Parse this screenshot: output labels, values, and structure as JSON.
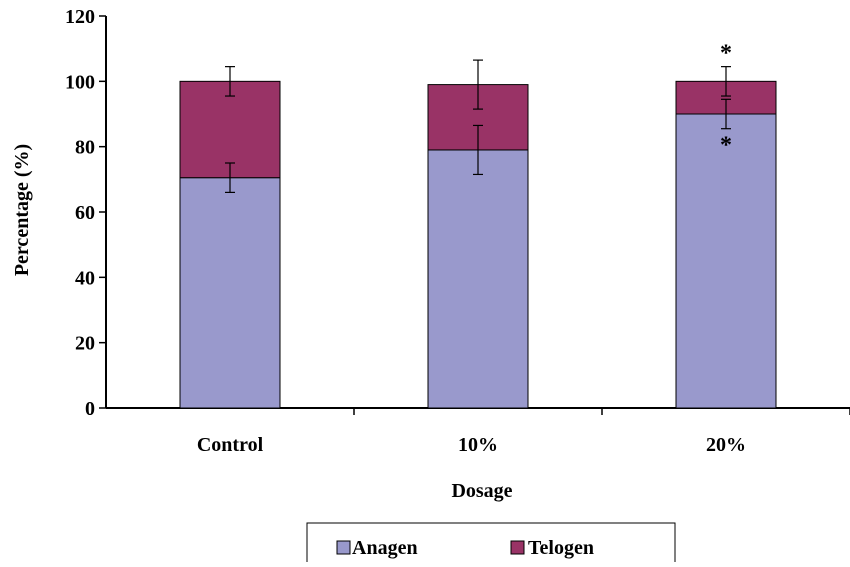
{
  "chart_data": {
    "type": "bar",
    "stacked": true,
    "categories": [
      "Control",
      "10%",
      "20%"
    ],
    "series": [
      {
        "name": "Anagen",
        "values": [
          70.5,
          79,
          90
        ],
        "error": [
          4.5,
          7.5,
          4.5
        ],
        "color": "#9999CC"
      },
      {
        "name": "Telogen",
        "values": [
          29.5,
          20,
          10
        ],
        "error": [
          4.5,
          7.5,
          4.5
        ],
        "color": "#993366"
      }
    ],
    "xlabel": "Dosage",
    "ylabel": "Percentage (%)",
    "ylim": [
      0,
      120
    ],
    "yticks": [
      0,
      20,
      40,
      60,
      80,
      100,
      120
    ],
    "annotations": [
      {
        "category": "20%",
        "text": "*",
        "position": "above-telogen"
      },
      {
        "category": "20%",
        "text": "*",
        "position": "below-anagen"
      }
    ],
    "grid": false,
    "legend": "bottom"
  }
}
